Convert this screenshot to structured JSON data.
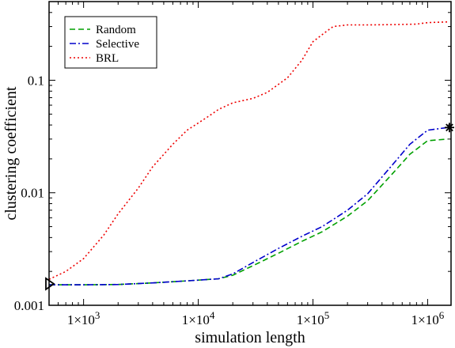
{
  "chart_data": {
    "type": "line",
    "title": "",
    "xlabel": "simulation length",
    "ylabel": "clustering coefficient",
    "xscale": "log",
    "yscale": "log",
    "xlim": [
      500,
      1600000
    ],
    "ylim": [
      0.001,
      0.5
    ],
    "xticks": [
      {
        "value": 1000,
        "label": "1×10",
        "sup": "3"
      },
      {
        "value": 10000,
        "label": "1×10",
        "sup": "4"
      },
      {
        "value": 100000,
        "label": "1×10",
        "sup": "5"
      },
      {
        "value": 1000000,
        "label": "1×10",
        "sup": "6"
      }
    ],
    "yticks": [
      {
        "value": 0.001,
        "label": "0.001"
      },
      {
        "value": 0.01,
        "label": "0.01"
      },
      {
        "value": 0.1,
        "label": "0.1"
      }
    ],
    "grid": false,
    "legend_position": "top-left",
    "series": [
      {
        "name": "Random",
        "color": "#00a000",
        "dash": "dashed",
        "x": [
          500,
          1000,
          2000,
          4000,
          8000,
          15000,
          20000,
          30000,
          50000,
          80000,
          120000,
          200000,
          300000,
          500000,
          700000,
          1000000,
          1500000
        ],
        "y": [
          0.00152,
          0.00152,
          0.00153,
          0.00158,
          0.00165,
          0.00172,
          0.00185,
          0.00225,
          0.0029,
          0.0037,
          0.0045,
          0.0062,
          0.0085,
          0.015,
          0.022,
          0.029,
          0.03
        ]
      },
      {
        "name": "Selective",
        "color": "#0000cc",
        "dash": "dashdot",
        "x": [
          500,
          1000,
          2000,
          4000,
          8000,
          15000,
          20000,
          30000,
          50000,
          80000,
          120000,
          200000,
          300000,
          500000,
          700000,
          1000000,
          1500000
        ],
        "y": [
          0.00152,
          0.00152,
          0.00153,
          0.00158,
          0.00165,
          0.00172,
          0.0019,
          0.0024,
          0.0032,
          0.0041,
          0.005,
          0.007,
          0.0098,
          0.018,
          0.027,
          0.036,
          0.038
        ]
      },
      {
        "name": "BRL",
        "color": "#ee0000",
        "dash": "dotted",
        "x": [
          500,
          700,
          1000,
          1500,
          2000,
          3000,
          4000,
          6000,
          8000,
          12000,
          15000,
          20000,
          30000,
          40000,
          60000,
          80000,
          100000,
          130000,
          150000,
          200000,
          300000,
          500000,
          800000,
          1000000,
          1500000
        ],
        "y": [
          0.0017,
          0.002,
          0.0026,
          0.0042,
          0.0065,
          0.011,
          0.017,
          0.027,
          0.036,
          0.047,
          0.055,
          0.063,
          0.069,
          0.078,
          0.105,
          0.15,
          0.22,
          0.27,
          0.3,
          0.31,
          0.31,
          0.312,
          0.315,
          0.325,
          0.33
        ]
      }
    ],
    "markers": [
      {
        "symbol": "triangle-right",
        "x": 500,
        "y": 0.00155
      },
      {
        "symbol": "asterisk",
        "x": 1550000,
        "y": 0.038
      }
    ]
  }
}
